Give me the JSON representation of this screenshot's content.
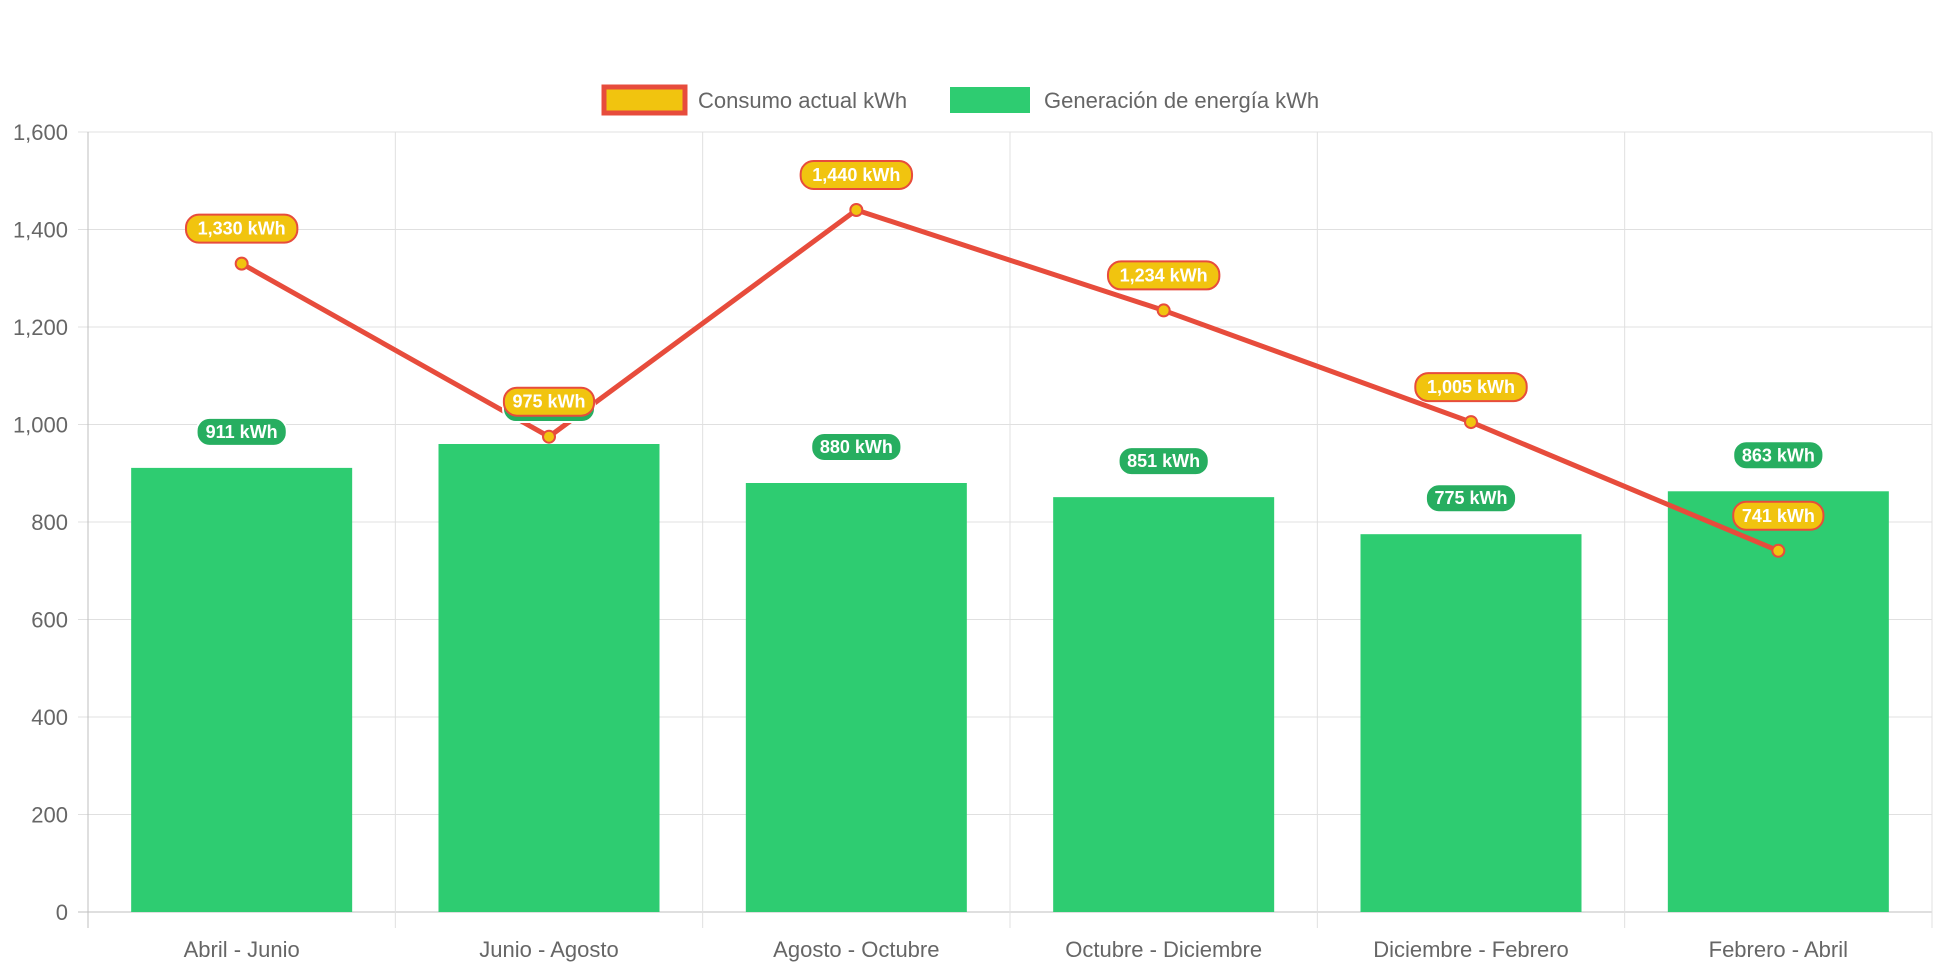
{
  "chart_data": {
    "type": "bar",
    "categories": [
      "Abril - Junio",
      "Junio - Agosto",
      "Agosto - Octubre",
      "Octubre - Diciembre",
      "Diciembre - Febrero",
      "Febrero - Abril"
    ],
    "series": [
      {
        "name": "Consumo actual kWh",
        "type": "line",
        "values": [
          1330,
          975,
          1440,
          1234,
          1005,
          741
        ],
        "labels": [
          "1,330 kWh",
          "975 kWh",
          "1,440 kWh",
          "1,234 kWh",
          "1,005 kWh",
          "741 kWh"
        ],
        "line_color": "#e74c3c",
        "fill_color": "#f1c40f"
      },
      {
        "name": "Generación de energía kWh",
        "type": "bar",
        "values": [
          911,
          960,
          880,
          851,
          775,
          863
        ],
        "labels": [
          "911 kWh",
          "",
          "880 kWh",
          "851 kWh",
          "775 kWh",
          "863 kWh"
        ],
        "color": "#2ecc71",
        "label_color": "#27ae60"
      }
    ],
    "ylim": [
      0,
      1600
    ],
    "yticks": [
      0,
      200,
      400,
      600,
      800,
      1000,
      1200,
      1400,
      1600
    ],
    "ytick_labels": [
      "0",
      "200",
      "400",
      "600",
      "800",
      "1,000",
      "1,200",
      "1,400",
      "1,600"
    ],
    "grid": true,
    "legend_position": "top-center",
    "title": "",
    "xlabel": "",
    "ylabel": ""
  }
}
